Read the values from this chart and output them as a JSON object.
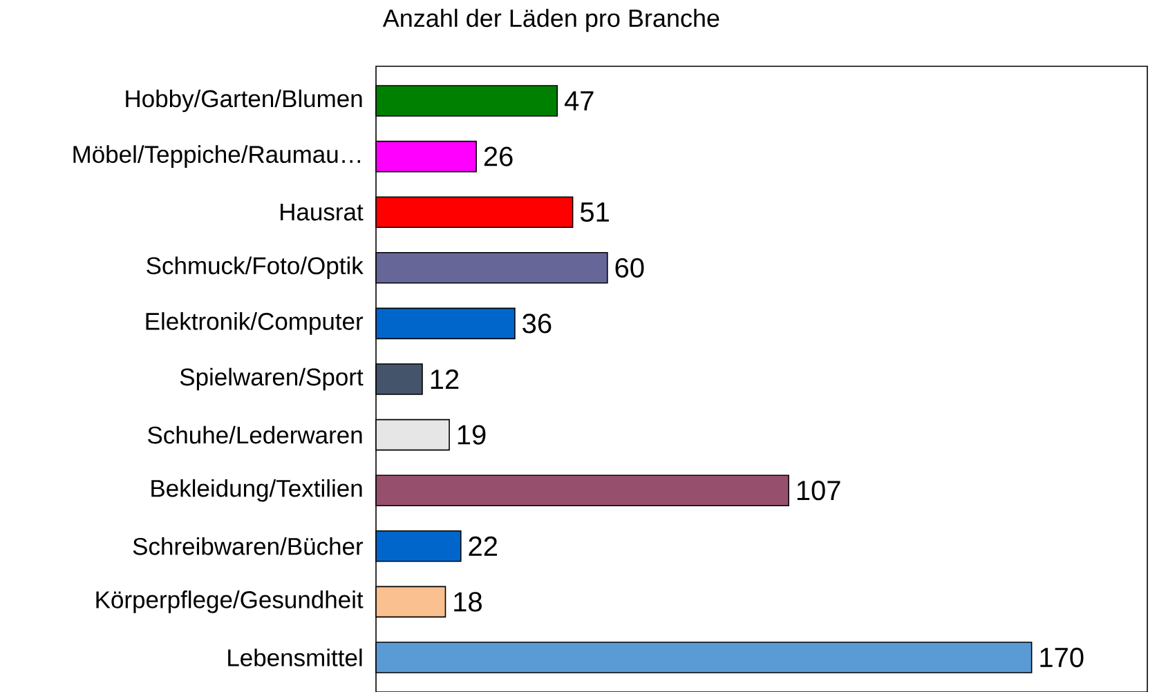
{
  "chart_data": {
    "type": "bar",
    "orientation": "horizontal",
    "title": "Anzahl der Läden pro Branche",
    "categories": [
      "Hobby/Garten/Blumen",
      "Möbel/Teppiche/Raumau…",
      "Hausrat",
      "Schmuck/Foto/Optik",
      "Elektronik/Computer",
      "Spielwaren/Sport",
      "Schuhe/Lederwaren",
      "Bekleidung/Textilien",
      "Schreibwaren/Bücher",
      "Körperpflege/Gesundheit",
      "Lebensmittel"
    ],
    "values": [
      47,
      26,
      51,
      60,
      36,
      12,
      19,
      107,
      22,
      18,
      170
    ],
    "colors": [
      "#008000",
      "#ff00ff",
      "#ff0000",
      "#666699",
      "#0066cc",
      "#44546a",
      "#e6e6e6",
      "#96506e",
      "#0066cc",
      "#fac090",
      "#5b9bd5"
    ],
    "xlim": [
      0,
      200
    ],
    "data_labels": true,
    "tick_labels": "y"
  }
}
